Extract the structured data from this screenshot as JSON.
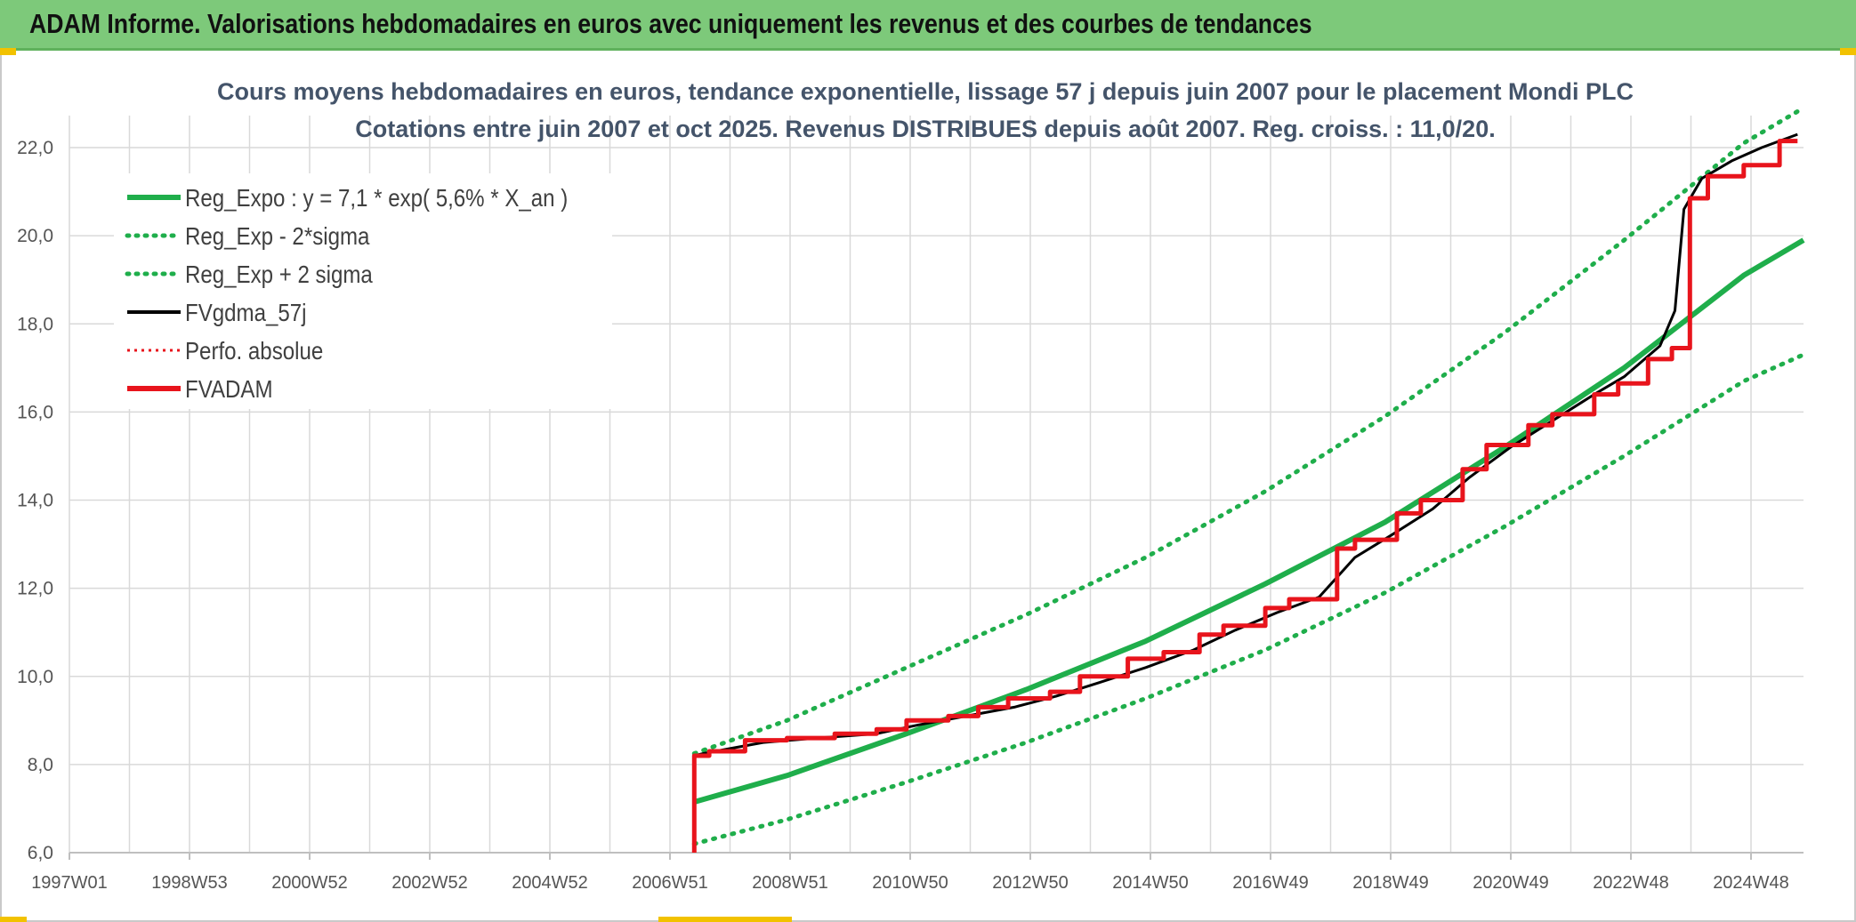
{
  "banner": {
    "title": "ADAM Informe. Valorisations hebdomadaires en euros avec uniquement les revenus et des courbes de tendances"
  },
  "colors": {
    "banner": "#7dc97a",
    "reg_expo": "#1fae4b",
    "fv_gdma": "#000000",
    "perfo": "#e8141c",
    "fvadam": "#e8141c",
    "grid": "#d9d9d9",
    "title": "#44546a"
  },
  "chart_data": {
    "type": "line",
    "title": [
      "Cours moyens hebdomadaires en euros, tendance exponentielle, lissage 57 j depuis juin 2007 pour le placement Mondi PLC",
      "Cotations entre juin 2007 et oct 2025. Revenus DISTRIBUES depuis août 2007. Reg. croiss. : 11,0/20."
    ],
    "x_tick_labels": [
      "1997W01",
      "1998W53",
      "2000W52",
      "2002W52",
      "2004W52",
      "2006W51",
      "2008W51",
      "2010W50",
      "2012W50",
      "2014W50",
      "2016W49",
      "2018W49",
      "2020W49",
      "2022W48",
      "2024W48"
    ],
    "x_range": [
      1997.0,
      2026.0
    ],
    "y_tick_labels": [
      "6,0",
      "8,0",
      "10,0",
      "12,0",
      "14,0",
      "16,0",
      "18,0",
      "20,0",
      "22,0"
    ],
    "ylim": [
      6.0,
      23.0
    ],
    "grid": true,
    "legend_position": "top-left",
    "legend": [
      {
        "key": "reg_expo",
        "label": "Reg_Expo : y = 7,1 * exp( 5,6% *  X_an )",
        "style": "solid-thick"
      },
      {
        "key": "reg_lo",
        "label": "Reg_Exp - 2*sigma",
        "style": "dotted-green"
      },
      {
        "key": "reg_hi",
        "label": "Reg_Exp + 2 sigma",
        "style": "dotted-green"
      },
      {
        "key": "fv_gdma",
        "label": "FVgdma_57j",
        "style": "solid-black"
      },
      {
        "key": "perfo",
        "label": "Perfo. absolue",
        "style": "dotted-red"
      },
      {
        "key": "fvadam",
        "label": "FVADAM",
        "style": "solid-red-thick"
      }
    ],
    "series": [
      {
        "key": "reg_expo",
        "name": "Reg_Expo : y = 7,1 * exp( 5,6% *  X_an )",
        "x": [
          2007.45,
          2009.0,
          2011.0,
          2013.0,
          2015.0,
          2017.0,
          2019.0,
          2021.0,
          2023.0,
          2025.0,
          2026.0
        ],
        "y": [
          7.15,
          7.75,
          8.7,
          9.7,
          10.8,
          12.1,
          13.5,
          15.2,
          17.0,
          19.1,
          19.9
        ]
      },
      {
        "key": "reg_hi",
        "name": "Reg_Exp + 2 sigma",
        "x": [
          2007.45,
          2009.0,
          2011.0,
          2013.0,
          2015.0,
          2017.0,
          2019.0,
          2021.0,
          2023.0,
          2025.0,
          2026.0
        ],
        "y": [
          8.25,
          9.0,
          10.2,
          11.4,
          12.7,
          14.2,
          15.9,
          17.8,
          19.9,
          22.1,
          22.9
        ]
      },
      {
        "key": "reg_lo",
        "name": "Reg_Exp - 2*sigma",
        "x": [
          2007.45,
          2009.0,
          2011.0,
          2013.0,
          2015.0,
          2017.0,
          2019.0,
          2021.0,
          2023.0,
          2025.0,
          2026.0
        ],
        "y": [
          6.2,
          6.75,
          7.6,
          8.5,
          9.5,
          10.6,
          11.9,
          13.4,
          15.0,
          16.7,
          17.3
        ]
      },
      {
        "key": "fv_gdma",
        "name": "FVgdma_57j",
        "x": [
          2007.45,
          2007.6,
          2008.0,
          2008.6,
          2009.5,
          2010.5,
          2011.2,
          2012.0,
          2012.8,
          2013.5,
          2014.2,
          2015.0,
          2015.8,
          2016.5,
          2017.2,
          2017.9,
          2018.5,
          2019.1,
          2019.8,
          2020.4,
          2021.1,
          2021.8,
          2022.5,
          2023.0,
          2023.6,
          2023.85,
          2024.0,
          2024.3,
          2024.8,
          2025.3,
          2025.9
        ],
        "y": [
          8.2,
          8.25,
          8.35,
          8.5,
          8.6,
          8.7,
          8.9,
          9.1,
          9.3,
          9.55,
          9.85,
          10.2,
          10.6,
          11.05,
          11.45,
          11.8,
          12.7,
          13.2,
          13.8,
          14.5,
          15.2,
          15.8,
          16.4,
          16.8,
          17.5,
          18.3,
          20.6,
          21.3,
          21.7,
          22.0,
          22.3
        ]
      },
      {
        "key": "fvadam",
        "name": "FVADAM",
        "x": [
          2007.45,
          2007.45,
          2007.7,
          2007.7,
          2008.3,
          2008.3,
          2009.0,
          2009.0,
          2009.8,
          2009.8,
          2010.5,
          2010.5,
          2011.0,
          2011.0,
          2011.7,
          2011.7,
          2012.2,
          2012.2,
          2012.7,
          2012.7,
          2013.4,
          2013.4,
          2013.9,
          2013.9,
          2014.7,
          2014.7,
          2015.3,
          2015.3,
          2015.9,
          2015.9,
          2016.3,
          2016.3,
          2017.0,
          2017.0,
          2017.4,
          2017.4,
          2018.2,
          2018.2,
          2018.5,
          2018.5,
          2019.2,
          2019.2,
          2019.6,
          2019.6,
          2020.3,
          2020.3,
          2020.7,
          2020.7,
          2021.4,
          2021.4,
          2021.8,
          2021.8,
          2022.5,
          2022.5,
          2022.9,
          2022.9,
          2023.4,
          2023.4,
          2023.8,
          2023.8,
          2024.1,
          2024.1,
          2024.4,
          2024.4,
          2025.0,
          2025.0,
          2025.6,
          2025.6,
          2025.9
        ],
        "y": [
          6.0,
          8.2,
          8.2,
          8.3,
          8.3,
          8.55,
          8.55,
          8.6,
          8.6,
          8.7,
          8.7,
          8.8,
          8.8,
          9.0,
          9.0,
          9.1,
          9.1,
          9.3,
          9.3,
          9.5,
          9.5,
          9.65,
          9.65,
          10.0,
          10.0,
          10.4,
          10.4,
          10.55,
          10.55,
          10.95,
          10.95,
          11.15,
          11.15,
          11.55,
          11.55,
          11.75,
          11.75,
          12.9,
          12.9,
          13.1,
          13.1,
          13.7,
          13.7,
          14.0,
          14.0,
          14.7,
          14.7,
          15.25,
          15.25,
          15.7,
          15.7,
          15.95,
          15.95,
          16.4,
          16.4,
          16.65,
          16.65,
          17.2,
          17.2,
          17.45,
          17.45,
          20.85,
          20.85,
          21.35,
          21.35,
          21.6,
          21.6,
          22.15,
          22.15
        ]
      }
    ]
  }
}
